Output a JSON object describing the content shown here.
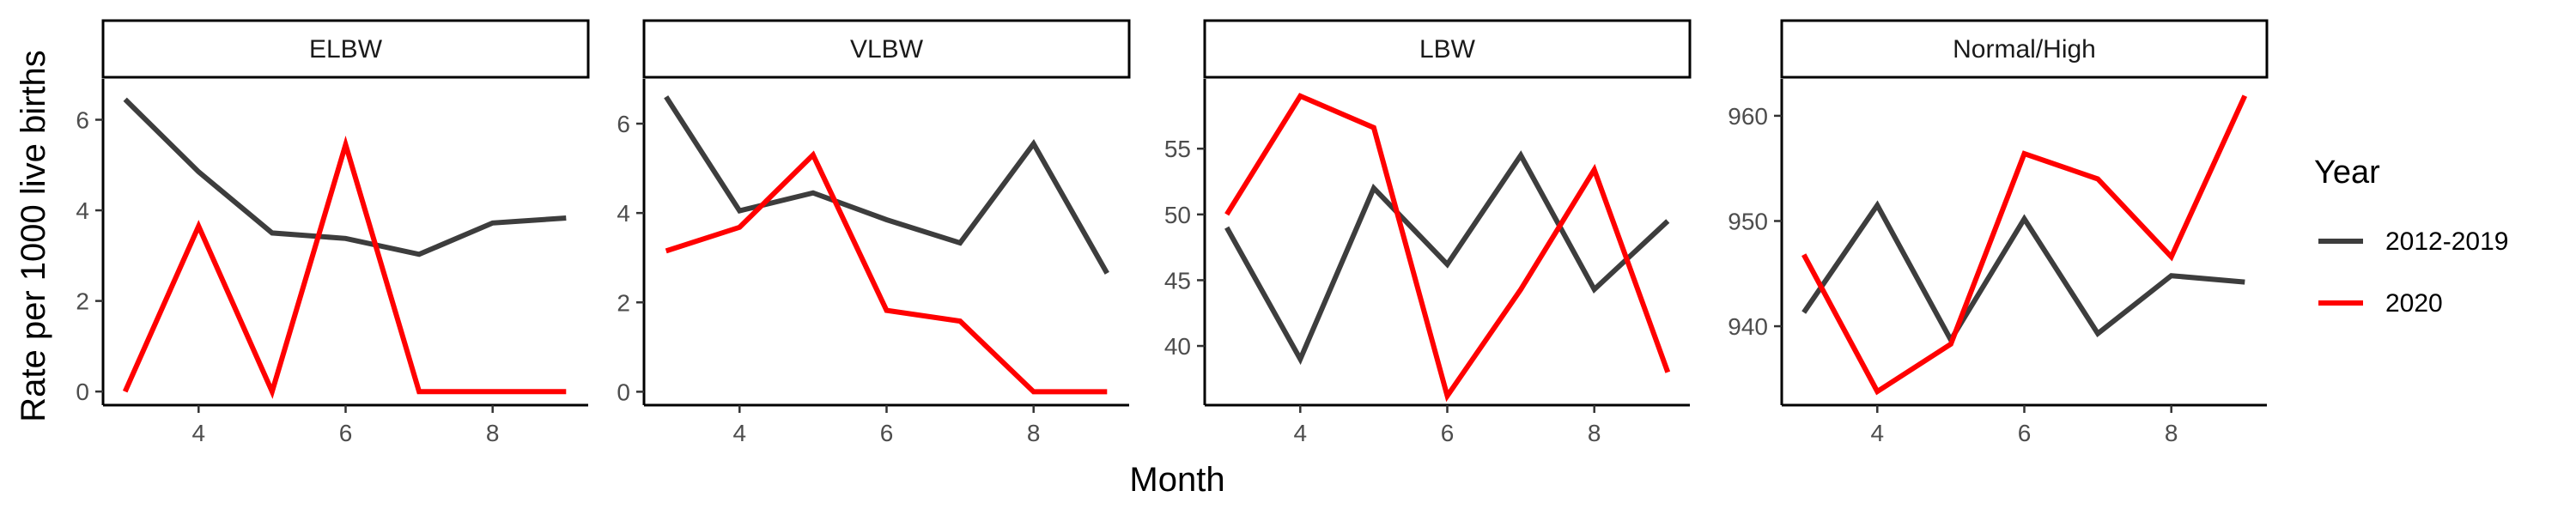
{
  "chart_data": {
    "type": "line",
    "xlabel": "Month",
    "ylabel": "Rate per 1000 live births",
    "x": [
      3,
      4,
      5,
      6,
      7,
      8,
      9
    ],
    "legend": {
      "title": "Year",
      "position": "right",
      "entries": [
        "2012-2019",
        "2020"
      ]
    },
    "colors": {
      "2012-2019": "#3d3d3d",
      "2020": "#ff0000"
    },
    "panels": [
      {
        "title": "ELBW",
        "ylim": [
          -0.3,
          6.9
        ],
        "yticks": [
          0,
          2,
          4,
          6
        ],
        "series": [
          {
            "name": "2012-2019",
            "values": [
              6.45,
              4.85,
              3.5,
              3.38,
              3.03,
              3.72,
              3.83
            ]
          },
          {
            "name": "2020",
            "values": [
              0,
              3.65,
              0,
              5.45,
              0,
              0,
              0
            ]
          }
        ]
      },
      {
        "title": "VLBW",
        "ylim": [
          -0.3,
          7.0
        ],
        "yticks": [
          0,
          2,
          4,
          6
        ],
        "series": [
          {
            "name": "2012-2019",
            "values": [
              6.6,
              4.05,
              4.45,
              3.85,
              3.33,
              5.55,
              2.65
            ]
          },
          {
            "name": "2020",
            "values": [
              3.15,
              3.68,
              5.3,
              1.82,
              1.58,
              0,
              0
            ]
          }
        ]
      },
      {
        "title": "LBW",
        "ylim": [
          35.5,
          60.3
        ],
        "yticks": [
          40,
          45,
          50,
          55
        ],
        "series": [
          {
            "name": "2012-2019",
            "values": [
              49,
              39,
              52,
              46.2,
              54.5,
              44.3,
              49.5
            ]
          },
          {
            "name": "2020",
            "values": [
              50,
              59,
              56.6,
              36.2,
              44.3,
              53.4,
              38
            ]
          }
        ]
      },
      {
        "title": "Normal/High",
        "ylim": [
          932.5,
          963.5
        ],
        "yticks": [
          940,
          950,
          960
        ],
        "series": [
          {
            "name": "2012-2019",
            "values": [
              941.3,
              951.5,
              938.7,
              950.2,
              939.3,
              944.8,
              944.2
            ]
          },
          {
            "name": "2020",
            "values": [
              946.8,
              933.8,
              938.3,
              956.4,
              954,
              946.6,
              961.9
            ]
          }
        ]
      }
    ],
    "xticks": [
      4,
      6,
      8
    ],
    "xlim": [
      2.7,
      9.3
    ],
    "grid": false
  }
}
